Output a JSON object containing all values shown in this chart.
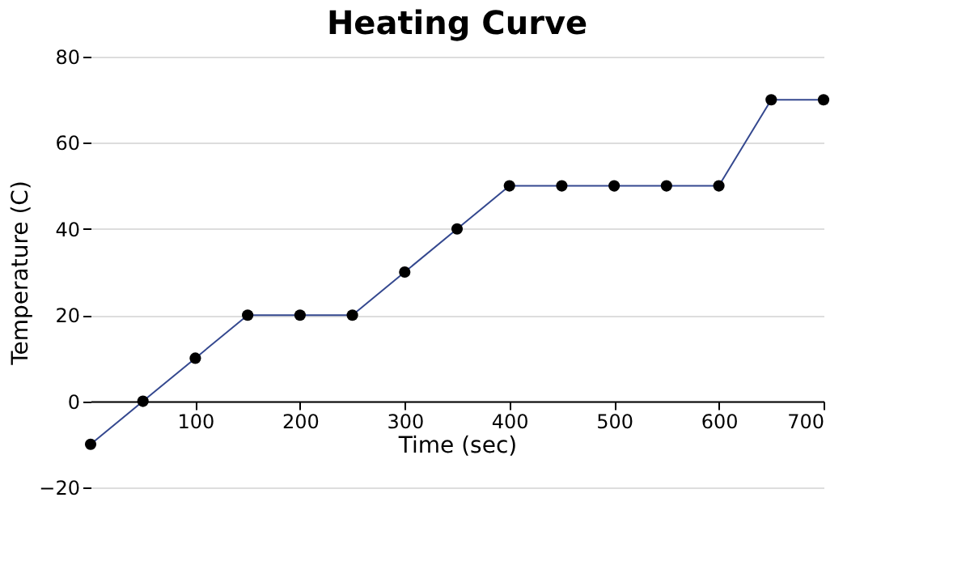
{
  "chart_data": {
    "type": "line",
    "title": "Heating Curve",
    "xlabel": "Time (sec)",
    "ylabel": "Temperature (C)",
    "x": [
      0,
      50,
      100,
      150,
      200,
      250,
      300,
      350,
      400,
      450,
      500,
      550,
      600,
      650,
      700
    ],
    "series": [
      {
        "color": "#34488f",
        "values": [
          -10,
          0,
          10,
          20,
          20,
          20,
          30,
          40,
          50,
          50,
          50,
          50,
          50,
          70,
          70
        ]
      }
    ],
    "xlim": [
      0,
      700
    ],
    "xticks": [
      100,
      200,
      300,
      400,
      500,
      600,
      700
    ],
    "ylim": [
      -20,
      80
    ],
    "yticks": [
      -20,
      0,
      20,
      40,
      60,
      80
    ],
    "grid": "y",
    "marker": "circle",
    "line_style": "solid"
  }
}
